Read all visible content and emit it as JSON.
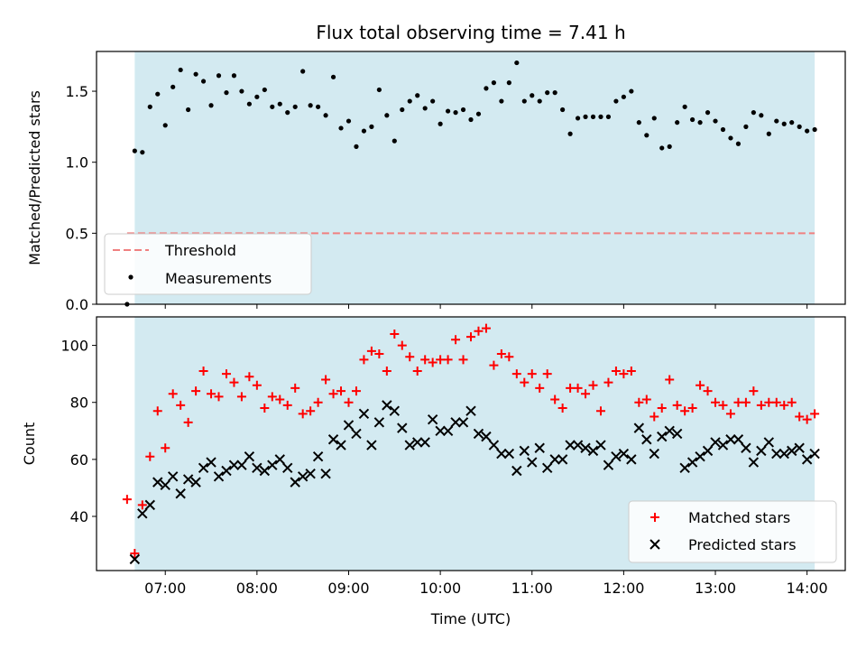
{
  "chart_data": [
    {
      "type": "scatter",
      "title": "Flux total observing time = 7.41 h",
      "ylabel": "Matched/Predicted stars",
      "xlabel": "",
      "ylim": [
        0,
        1.78
      ],
      "yticks": [
        "0.0",
        "0.5",
        "1.0",
        "1.5"
      ],
      "ytick_values": [
        0,
        0.5,
        1.0,
        1.5
      ],
      "shaded_span": {
        "start": "06:40",
        "end": "14:05",
        "color": "#d3eaf1"
      },
      "threshold": {
        "name": "Threshold",
        "value": 0.5,
        "start": "06:35",
        "end": "14:05",
        "color": "#f08080"
      },
      "legend": {
        "placement": "lower-left",
        "entries": [
          "Threshold",
          "Measurements"
        ]
      },
      "series": [
        {
          "name": "Measurements",
          "color": "#000000",
          "x": [
            "06:35",
            "06:40",
            "06:45",
            "06:50",
            "06:55",
            "07:00",
            "07:05",
            "07:10",
            "07:15",
            "07:20",
            "07:25",
            "07:30",
            "07:35",
            "07:40",
            "07:45",
            "07:50",
            "07:55",
            "08:00",
            "08:05",
            "08:10",
            "08:15",
            "08:20",
            "08:25",
            "08:30",
            "08:35",
            "08:40",
            "08:45",
            "08:50",
            "08:55",
            "09:00",
            "09:05",
            "09:10",
            "09:15",
            "09:20",
            "09:25",
            "09:30",
            "09:35",
            "09:40",
            "09:45",
            "09:50",
            "09:55",
            "10:00",
            "10:05",
            "10:10",
            "10:15",
            "10:20",
            "10:25",
            "10:30",
            "10:35",
            "10:40",
            "10:45",
            "10:50",
            "10:55",
            "11:00",
            "11:05",
            "11:10",
            "11:15",
            "11:20",
            "11:25",
            "11:30",
            "11:35",
            "11:40",
            "11:45",
            "11:50",
            "11:55",
            "12:00",
            "12:05",
            "12:10",
            "12:15",
            "12:20",
            "12:25",
            "12:30",
            "12:35",
            "12:40",
            "12:45",
            "12:50",
            "12:55",
            "13:00",
            "13:05",
            "13:10",
            "13:15",
            "13:20",
            "13:25",
            "13:30",
            "13:35",
            "13:40",
            "13:45",
            "13:50",
            "13:55",
            "14:00",
            "14:05"
          ],
          "y": [
            0.0,
            1.08,
            1.07,
            1.39,
            1.48,
            1.26,
            1.53,
            1.65,
            1.37,
            1.62,
            1.57,
            1.4,
            1.61,
            1.49,
            1.61,
            1.5,
            1.41,
            1.46,
            1.51,
            1.39,
            1.41,
            1.35,
            1.39,
            1.64,
            1.4,
            1.39,
            1.33,
            1.6,
            1.24,
            1.29,
            1.11,
            1.22,
            1.25,
            1.51,
            1.33,
            1.15,
            1.37,
            1.43,
            1.47,
            1.38,
            1.43,
            1.27,
            1.36,
            1.35,
            1.37,
            1.3,
            1.34,
            1.52,
            1.56,
            1.43,
            1.56,
            1.7,
            1.43,
            1.47,
            1.43,
            1.49,
            1.49,
            1.37,
            1.2,
            1.31,
            1.32,
            1.32,
            1.32,
            1.32,
            1.43,
            1.46,
            1.5,
            1.28,
            1.19,
            1.31,
            1.1,
            1.11,
            1.28,
            1.39,
            1.3,
            1.28,
            1.35,
            1.29,
            1.23,
            1.17,
            1.13,
            1.25,
            1.35,
            1.33,
            1.2,
            1.29,
            1.27,
            1.28,
            1.25,
            1.22,
            1.23
          ]
        }
      ]
    },
    {
      "type": "scatter",
      "title": "",
      "ylabel": "Count",
      "xlabel": "Time (UTC)",
      "ylim": [
        21,
        110
      ],
      "yticks": [
        "40",
        "60",
        "80",
        "100"
      ],
      "ytick_values": [
        40,
        60,
        80,
        100
      ],
      "xlim": [
        "06:15",
        "14:25"
      ],
      "xticks": [
        "07:00",
        "08:00",
        "09:00",
        "10:00",
        "11:00",
        "12:00",
        "13:00",
        "14:00"
      ],
      "shaded_span": {
        "start": "06:40",
        "end": "14:05",
        "color": "#d3eaf1"
      },
      "legend": {
        "placement": "lower-right",
        "entries": [
          "Matched stars",
          "Predicted stars"
        ]
      },
      "series": [
        {
          "name": "Matched stars",
          "marker": "+",
          "color": "#ff0000",
          "x": [
            "06:35",
            "06:40",
            "06:45",
            "06:50",
            "06:55",
            "07:00",
            "07:05",
            "07:10",
            "07:15",
            "07:20",
            "07:25",
            "07:30",
            "07:35",
            "07:40",
            "07:45",
            "07:50",
            "07:55",
            "08:00",
            "08:05",
            "08:10",
            "08:15",
            "08:20",
            "08:25",
            "08:30",
            "08:35",
            "08:40",
            "08:45",
            "08:50",
            "08:55",
            "09:00",
            "09:05",
            "09:10",
            "09:15",
            "09:20",
            "09:25",
            "09:30",
            "09:35",
            "09:40",
            "09:45",
            "09:50",
            "09:55",
            "10:00",
            "10:05",
            "10:10",
            "10:15",
            "10:20",
            "10:25",
            "10:30",
            "10:35",
            "10:40",
            "10:45",
            "10:50",
            "10:55",
            "11:00",
            "11:05",
            "11:10",
            "11:15",
            "11:20",
            "11:25",
            "11:30",
            "11:35",
            "11:40",
            "11:45",
            "11:50",
            "11:55",
            "12:00",
            "12:05",
            "12:10",
            "12:15",
            "12:20",
            "12:25",
            "12:30",
            "12:35",
            "12:40",
            "12:45",
            "12:50",
            "12:55",
            "13:00",
            "13:05",
            "13:10",
            "13:15",
            "13:20",
            "13:25",
            "13:30",
            "13:35",
            "13:40",
            "13:45",
            "13:50",
            "13:55",
            "14:00",
            "14:05"
          ],
          "y": [
            46,
            27,
            44,
            61,
            77,
            64,
            83,
            79,
            73,
            84,
            91,
            83,
            82,
            90,
            87,
            82,
            89,
            86,
            78,
            82,
            81,
            79,
            85,
            76,
            77,
            80,
            88,
            83,
            84,
            80,
            84,
            95,
            98,
            97,
            91,
            104,
            100,
            96,
            91,
            95,
            94,
            95,
            95,
            102,
            95,
            103,
            105,
            106,
            93,
            97,
            96,
            90,
            87,
            90,
            85,
            90,
            81,
            78,
            85,
            85,
            83,
            86,
            77,
            87,
            91,
            90,
            91,
            80,
            81,
            75,
            78,
            88,
            79,
            77,
            78,
            86,
            84,
            80,
            79,
            76,
            80,
            80,
            84,
            79,
            80,
            80,
            79,
            80,
            75,
            74,
            76
          ]
        },
        {
          "name": "Predicted stars",
          "marker": "x",
          "color": "#000000",
          "x": [
            "06:40",
            "06:45",
            "06:50",
            "06:55",
            "07:00",
            "07:05",
            "07:10",
            "07:15",
            "07:20",
            "07:25",
            "07:30",
            "07:35",
            "07:40",
            "07:45",
            "07:50",
            "07:55",
            "08:00",
            "08:05",
            "08:10",
            "08:15",
            "08:20",
            "08:25",
            "08:30",
            "08:35",
            "08:40",
            "08:45",
            "08:50",
            "08:55",
            "09:00",
            "09:05",
            "09:10",
            "09:15",
            "09:20",
            "09:25",
            "09:30",
            "09:35",
            "09:40",
            "09:45",
            "09:50",
            "09:55",
            "10:00",
            "10:05",
            "10:10",
            "10:15",
            "10:20",
            "10:25",
            "10:30",
            "10:35",
            "10:40",
            "10:45",
            "10:50",
            "10:55",
            "11:00",
            "11:05",
            "11:10",
            "11:15",
            "11:20",
            "11:25",
            "11:30",
            "11:35",
            "11:40",
            "11:45",
            "11:50",
            "11:55",
            "12:00",
            "12:05",
            "12:10",
            "12:15",
            "12:20",
            "12:25",
            "12:30",
            "12:35",
            "12:40",
            "12:45",
            "12:50",
            "12:55",
            "13:00",
            "13:05",
            "13:10",
            "13:15",
            "13:20",
            "13:25",
            "13:30",
            "13:35",
            "13:40",
            "13:45",
            "13:50",
            "13:55",
            "14:00",
            "14:05"
          ],
          "y": [
            25,
            41,
            44,
            52,
            51,
            54,
            48,
            53,
            52,
            57,
            59,
            54,
            56,
            58,
            58,
            61,
            57,
            56,
            58,
            60,
            57,
            52,
            54,
            55,
            61,
            55,
            67,
            65,
            72,
            69,
            76,
            65,
            73,
            79,
            77,
            71,
            65,
            66,
            66,
            74,
            70,
            70,
            73,
            73,
            77,
            69,
            68,
            65,
            62,
            62,
            56,
            63,
            59,
            64,
            57,
            60,
            60,
            65,
            65,
            64,
            63,
            65,
            58,
            61,
            62,
            60,
            71,
            67,
            62,
            68,
            70,
            69,
            57,
            59,
            61,
            63,
            66,
            65,
            67,
            67,
            64,
            59,
            63,
            66,
            62,
            62,
            63,
            64,
            60,
            62
          ]
        }
      ]
    }
  ]
}
